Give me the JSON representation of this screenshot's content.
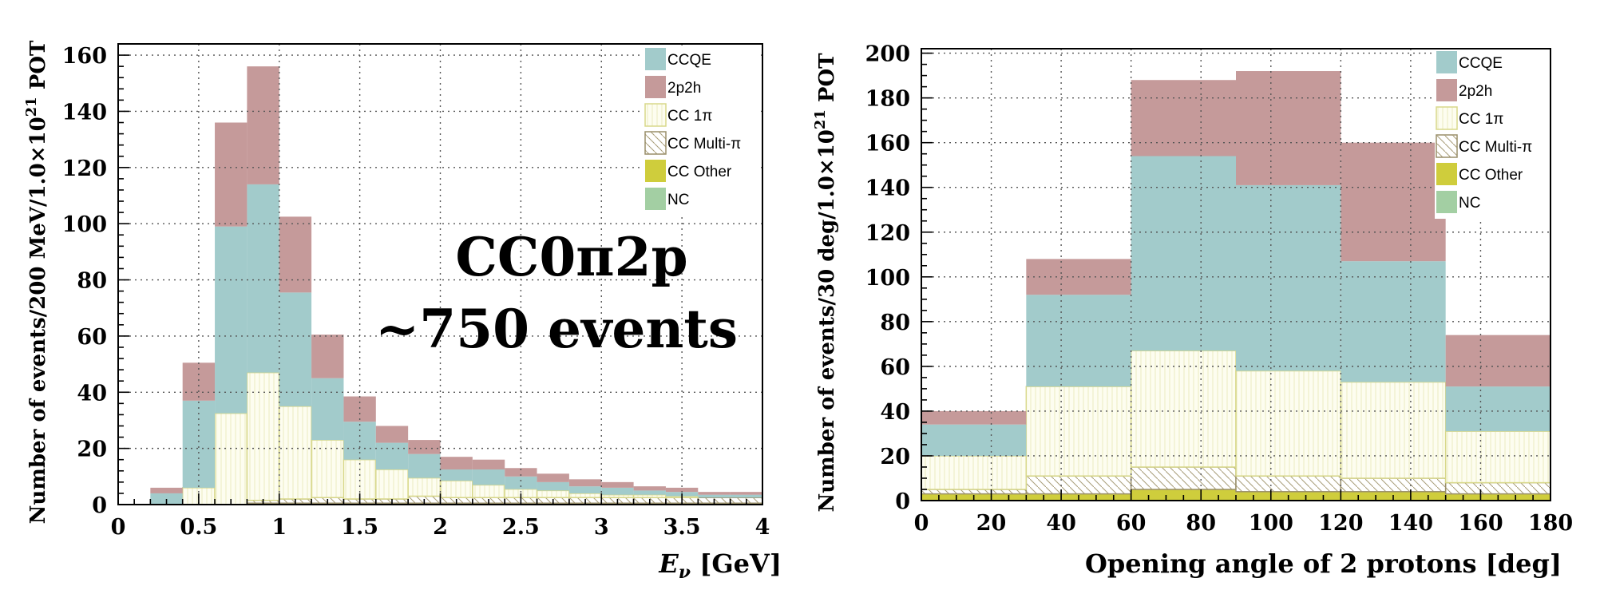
{
  "colors": {
    "CCQE": "#a2cbcb",
    "2p2h": "#c59a9a",
    "CC 1π": "#fdfdf0",
    "CC 1π_edge": "#d8d88a",
    "CC Multi-π": "#ffffff",
    "CC Multi-π_edge": "#9a8f6a",
    "CC Other": "#cfcd3c",
    "NC": "#a3cfa3"
  },
  "chart_data": [
    {
      "type": "bar",
      "stacked": true,
      "title": "",
      "xlabel_var": "E",
      "xlabel_sub": "ν",
      "xlabel_unit": " [GeV]",
      "ylabel_pre": "Number of events/200 MeV/1.0×10",
      "ylabel_sup": "21",
      "ylabel_post": " POT",
      "xlim": [
        0,
        4
      ],
      "ylim": [
        0,
        164
      ],
      "xticks": [
        0,
        0.5,
        1,
        1.5,
        2,
        2.5,
        3,
        3.5,
        4
      ],
      "xtick_labels": [
        "0",
        "0.5",
        "1",
        "1.5",
        "2",
        "2.5",
        "3",
        "3.5",
        "4"
      ],
      "yticks": [
        0,
        20,
        40,
        60,
        80,
        100,
        120,
        140,
        160
      ],
      "ytick_labels": [
        "0",
        "20",
        "40",
        "60",
        "80",
        "100",
        "120",
        "140",
        "160"
      ],
      "bin_edges": [
        0,
        0.2,
        0.4,
        0.6,
        0.8,
        1.0,
        1.2,
        1.4,
        1.6,
        1.8,
        2.0,
        2.2,
        2.4,
        2.6,
        2.8,
        3.0,
        3.2,
        3.4,
        3.6,
        3.8,
        4.0
      ],
      "series": [
        {
          "name": "CC Other",
          "values": [
            0,
            0,
            0,
            0,
            0.5,
            0.5,
            0.5,
            0.5,
            0.5,
            0.5,
            0.5,
            0.5,
            0.5,
            0.5,
            0.5,
            0.5,
            0.5,
            0.5,
            0.5,
            0.5
          ]
        },
        {
          "name": "CC Multi-π",
          "values": [
            0,
            0,
            0,
            0,
            1,
            1.5,
            2,
            1.5,
            1.5,
            2.5,
            2,
            2,
            2,
            2,
            2,
            2,
            2,
            2,
            2,
            2
          ]
        },
        {
          "name": "CC 1π",
          "values": [
            0,
            0,
            6,
            32.5,
            45.5,
            33,
            20.5,
            14,
            10.5,
            6.5,
            6,
            4.5,
            3,
            2.5,
            1.5,
            1,
            1,
            0.5,
            0,
            0
          ]
        },
        {
          "name": "CCQE",
          "values": [
            0,
            4,
            31,
            66.5,
            67,
            40.5,
            22,
            13.5,
            9.5,
            8.5,
            4,
            5.5,
            4.5,
            3,
            2.5,
            2.5,
            1.5,
            1.5,
            1,
            1
          ]
        },
        {
          "name": "2p2h",
          "values": [
            0,
            2,
            13.5,
            37,
            42,
            27,
            15.5,
            9,
            6,
            5,
            4.5,
            3.5,
            3,
            3,
            2.5,
            2,
            1.5,
            1.5,
            1,
            1
          ]
        },
        {
          "name": "NC",
          "values": [
            0,
            0,
            0,
            0,
            0,
            0,
            0,
            0,
            0,
            0,
            0,
            0,
            0,
            0,
            0,
            0,
            0,
            0,
            0,
            0
          ]
        }
      ],
      "legend": [
        "CCQE",
        "2p2h",
        "CC 1π",
        "CC Multi-π",
        "CC Other",
        "NC"
      ],
      "legend_position": "top-right",
      "annotation": [
        "CC0π2p",
        "~750 events"
      ]
    },
    {
      "type": "bar",
      "stacked": true,
      "title": "",
      "xlabel": "Opening angle of 2 protons [deg]",
      "ylabel_pre": "Number of events/30 deg/1.0×10",
      "ylabel_sup": "21",
      "ylabel_post": " POT",
      "xlim": [
        0,
        180
      ],
      "ylim": [
        0,
        202
      ],
      "xticks": [
        0,
        20,
        40,
        60,
        80,
        100,
        120,
        140,
        160,
        180
      ],
      "xtick_labels": [
        "0",
        "20",
        "40",
        "60",
        "80",
        "100",
        "120",
        "140",
        "160",
        "180"
      ],
      "yticks": [
        0,
        20,
        40,
        60,
        80,
        100,
        120,
        140,
        160,
        180,
        200
      ],
      "ytick_labels": [
        "0",
        "20",
        "40",
        "60",
        "80",
        "100",
        "120",
        "140",
        "160",
        "180",
        "200"
      ],
      "bin_edges": [
        0,
        30,
        60,
        90,
        120,
        150,
        180
      ],
      "series": [
        {
          "name": "CC Other",
          "values": [
            3,
            3,
            5,
            4,
            4,
            3
          ]
        },
        {
          "name": "CC Multi-π",
          "values": [
            2,
            8,
            10,
            7,
            6,
            5
          ]
        },
        {
          "name": "CC 1π",
          "values": [
            15,
            40,
            52,
            47,
            43,
            23
          ]
        },
        {
          "name": "CCQE",
          "values": [
            14,
            41,
            87,
            83,
            54,
            20
          ]
        },
        {
          "name": "2p2h",
          "values": [
            6,
            16,
            34,
            51,
            53,
            23
          ]
        },
        {
          "name": "NC",
          "values": [
            0,
            0,
            0,
            0,
            0,
            0
          ]
        }
      ],
      "legend": [
        "CCQE",
        "2p2h",
        "CC 1π",
        "CC Multi-π",
        "CC Other",
        "NC"
      ],
      "legend_position": "top-right"
    }
  ]
}
